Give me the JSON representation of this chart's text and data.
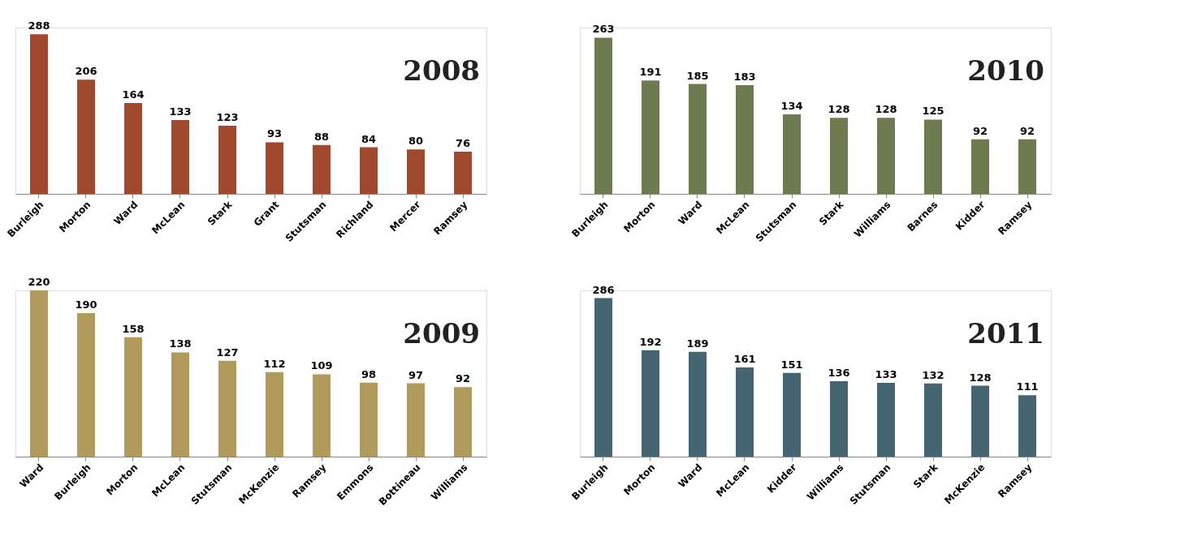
{
  "chart_data": [
    {
      "type": "bar",
      "title": "2008",
      "categories": [
        "Burleigh",
        "Morton",
        "Ward",
        "McLean",
        "Stark",
        "Grant",
        "Stutsman",
        "Richland",
        "Mercer",
        "Ramsey"
      ],
      "values": [
        288,
        206,
        164,
        133,
        123,
        93,
        88,
        84,
        80,
        76
      ],
      "color": "#a0492e",
      "data_labels": true,
      "grid": false
    },
    {
      "type": "bar",
      "title": "2010",
      "categories": [
        "Burleigh",
        "Morton",
        "Ward",
        "McLean",
        "Stutsman",
        "Stark",
        "Williams",
        "Barnes",
        "Kidder",
        "Ramsey"
      ],
      "values": [
        263,
        191,
        185,
        183,
        134,
        128,
        128,
        125,
        92,
        92
      ],
      "color": "#6e7a4f",
      "data_labels": true,
      "grid": false
    },
    {
      "type": "bar",
      "title": "2009",
      "categories": [
        "Ward",
        "Burleigh",
        "Morton",
        "McLean",
        "Stutsman",
        "McKenzie",
        "Ramsey",
        "Emmons",
        "Bottineau",
        "Williams"
      ],
      "values": [
        220,
        190,
        158,
        138,
        127,
        112,
        109,
        98,
        97,
        92
      ],
      "color": "#b09a5c",
      "data_labels": true,
      "grid": false
    },
    {
      "type": "bar",
      "title": "2011",
      "categories": [
        "Burleigh",
        "Morton",
        "Ward",
        "McLean",
        "Kidder",
        "Williams",
        "Stutsman",
        "Stark",
        "McKenzie",
        "Ramsey"
      ],
      "values": [
        286,
        192,
        189,
        161,
        151,
        136,
        133,
        132,
        128,
        111
      ],
      "color": "#466573",
      "data_labels": true,
      "grid": false
    }
  ]
}
